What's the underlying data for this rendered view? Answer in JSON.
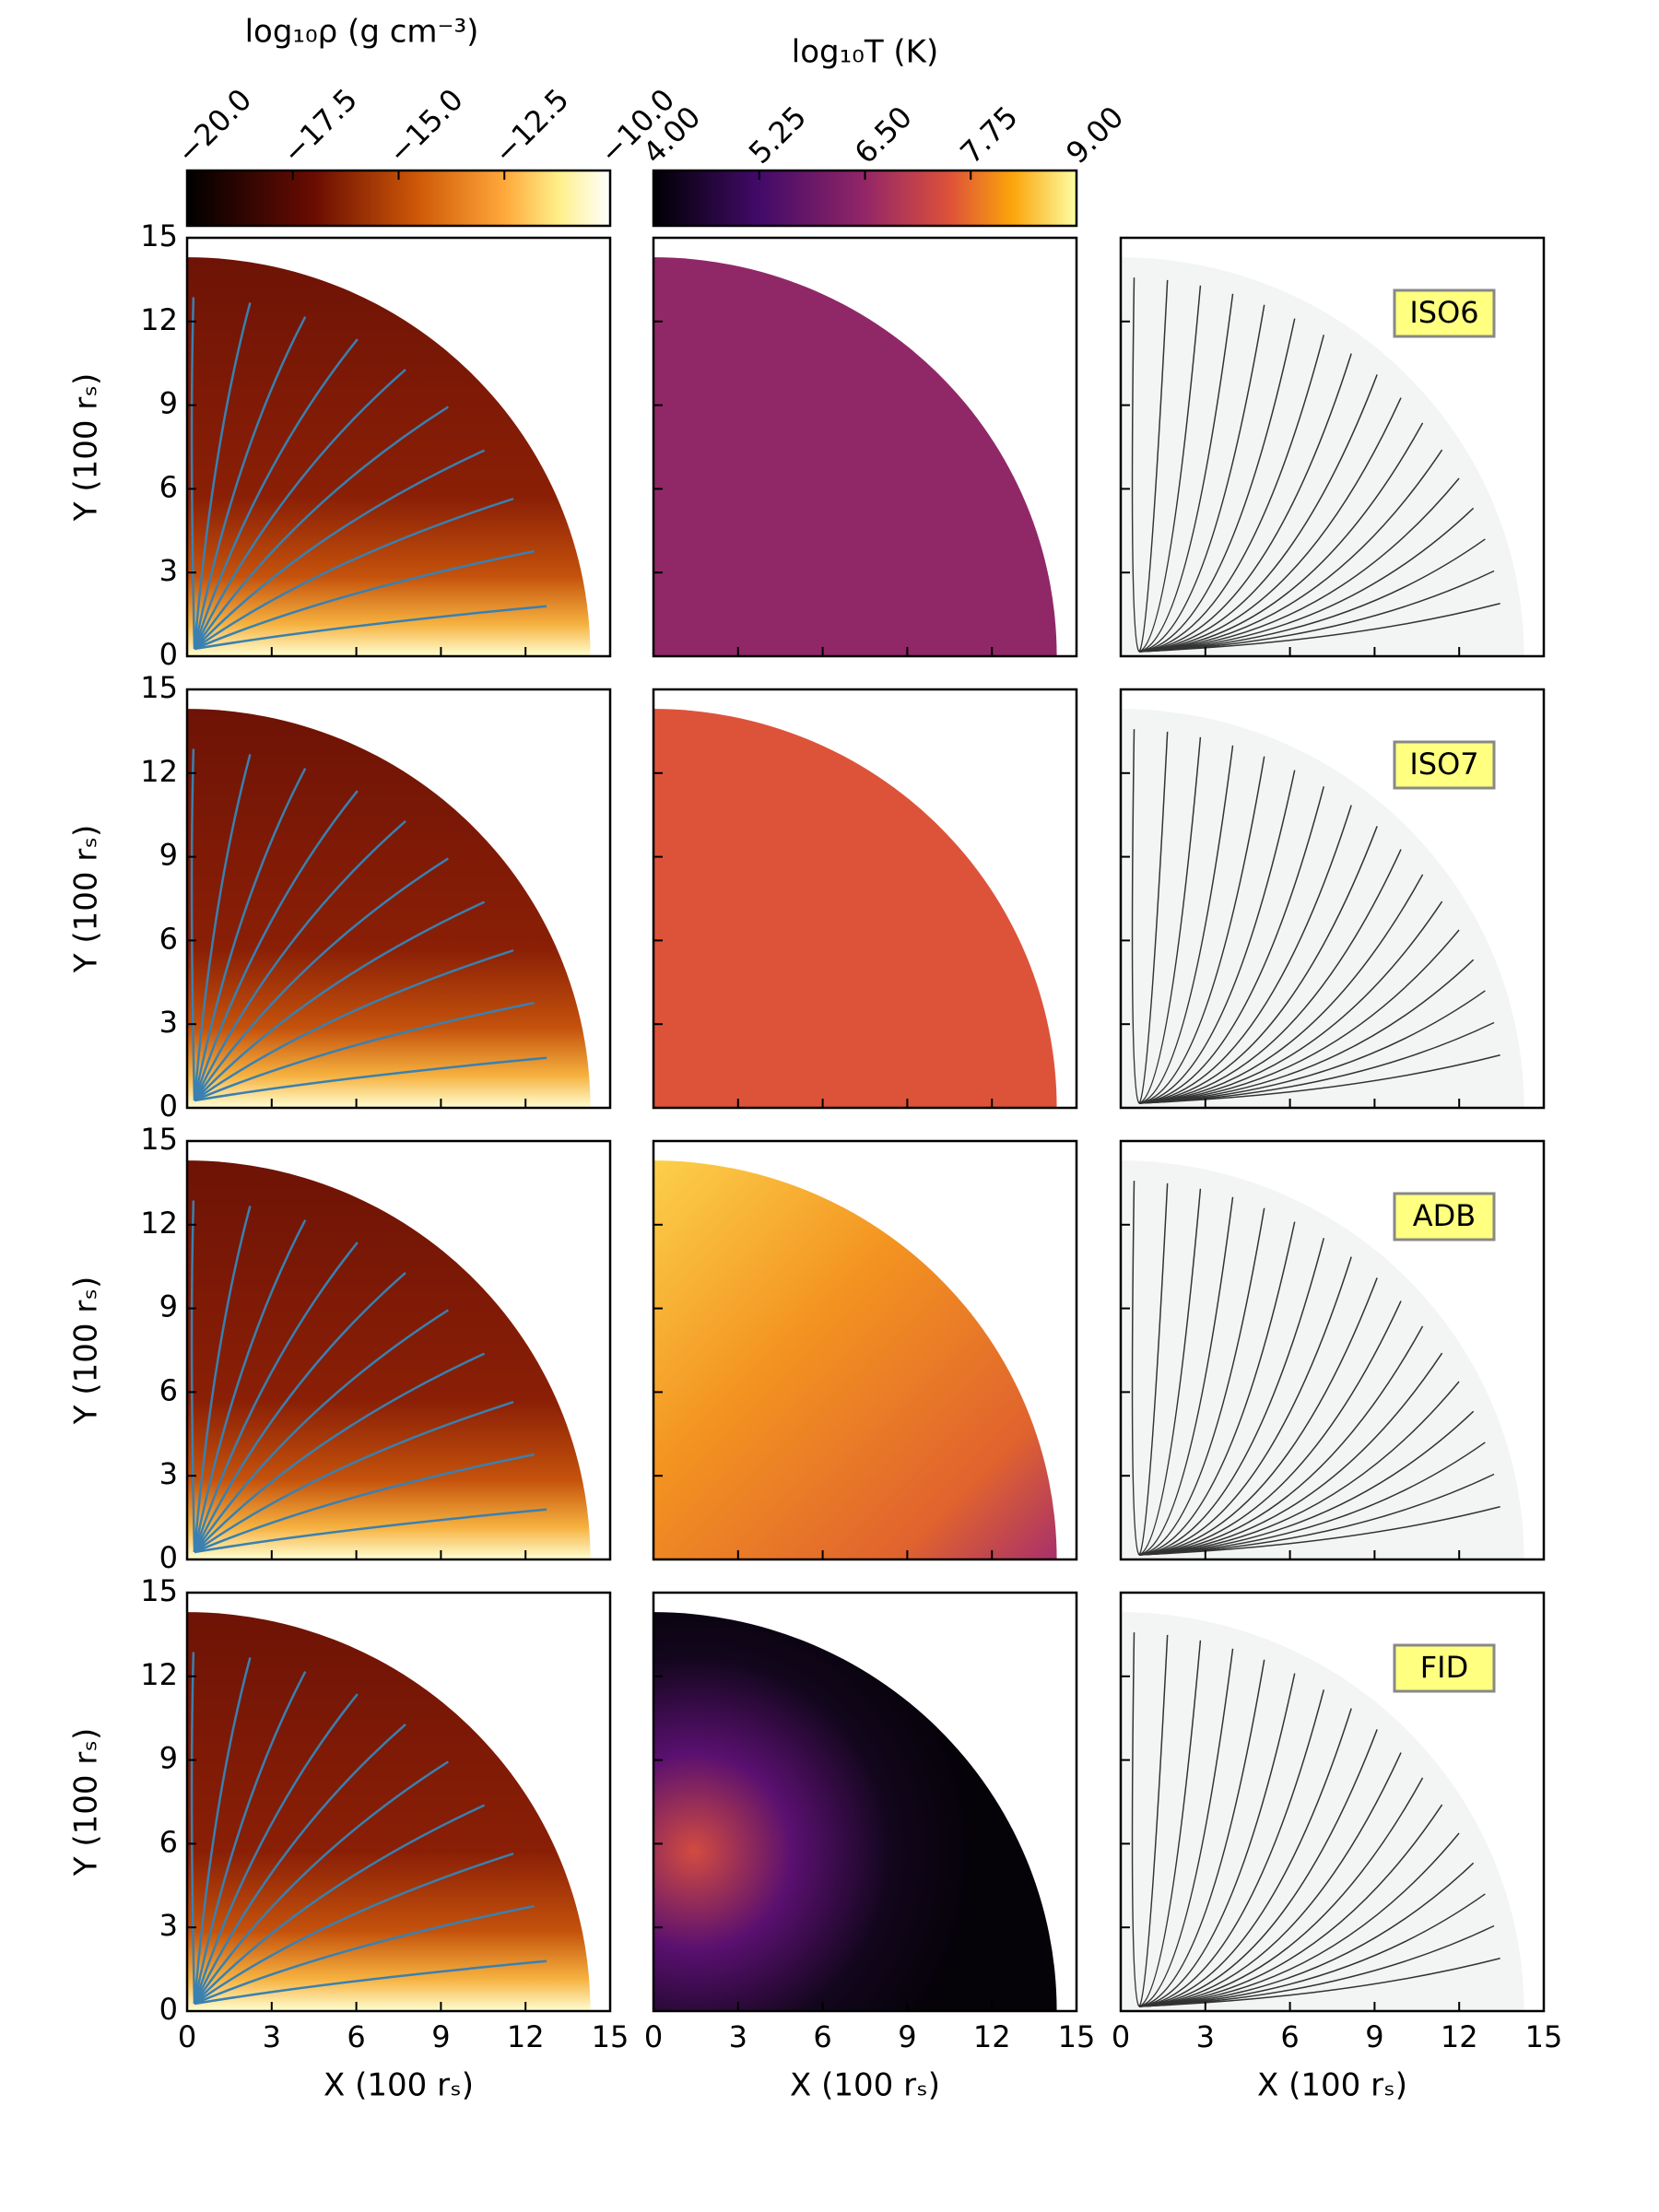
{
  "chart_data": {
    "type": "map-grid",
    "colorbars": [
      {
        "label": "log₁₀ρ (g cm⁻³)",
        "lim": [
          -20,
          -10
        ],
        "ticks": [
          {
            "value": -20,
            "label": "−20.0"
          },
          {
            "value": -17.5,
            "label": "−17.5"
          },
          {
            "value": -15,
            "label": "−15.0"
          },
          {
            "value": -12.5,
            "label": "−12.5"
          },
          {
            "value": -10,
            "label": "−10.0"
          }
        ]
      },
      {
        "label": "log₁₀T (K)",
        "lim": [
          4,
          9
        ],
        "ticks": [
          {
            "value": 4,
            "label": "4.00"
          },
          {
            "value": 5.25,
            "label": "5.25"
          },
          {
            "value": 6.5,
            "label": "6.50"
          },
          {
            "value": 7.75,
            "label": "7.75"
          },
          {
            "value": 9,
            "label": "9.00"
          }
        ]
      }
    ],
    "x_label": "X (100 rₛ)",
    "y_label": "Y (100 rₛ)",
    "xlim": [
      0,
      15
    ],
    "xticks": [
      0,
      3,
      6,
      9,
      12,
      15
    ],
    "ylim": [
      0,
      15
    ],
    "yticks": [
      0,
      3,
      6,
      9,
      12,
      15
    ],
    "models": [
      "ISO6",
      "ISO7",
      "ADB",
      "FID"
    ]
  }
}
